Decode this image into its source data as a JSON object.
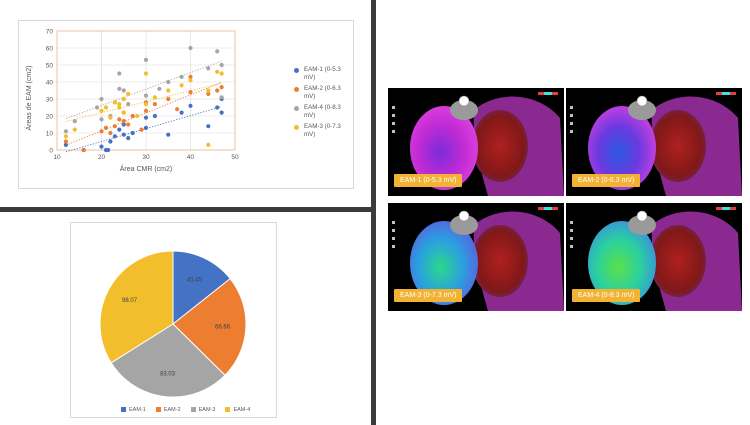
{
  "colors": {
    "eam1": "#4472c4",
    "eam2": "#ed7d31",
    "eam4": "#a5a5a5",
    "eam3": "#f2be2b",
    "label_bg": "#f2b233"
  },
  "scatter": {
    "legend": [
      {
        "name": "EAM-1 (0-5.3\nmV)",
        "color": "#4472c4"
      },
      {
        "name": "EAM-2 (0-6.3\nmV)",
        "color": "#ed7d31"
      },
      {
        "name": "EAM-4 (0-8.3\nmV)",
        "color": "#a5a5a5"
      },
      {
        "name": "EAM-3 (0-7.3\nmV)",
        "color": "#f2be2b"
      }
    ]
  },
  "pie": {
    "legend": [
      "EAM-1",
      "EAM-2",
      "EAM-3",
      "EAM-4"
    ]
  },
  "maps": {
    "labels": [
      "EAM-1 (0-5.3 mV)",
      "EAM-2 (0-6.3 mV)",
      "EAM-3 (0-7.3 mV)",
      "EAM-4 (0-8.3 mV)"
    ]
  },
  "chart_data": [
    {
      "type": "scatter",
      "xlabel": "Área CMR (cm2)",
      "ylabel": "Áreas de EAM (cm2)",
      "xlim": [
        10,
        50
      ],
      "ylim": [
        0,
        70
      ],
      "xticks": [
        10,
        20,
        30,
        40,
        50
      ],
      "yticks": [
        0,
        10,
        20,
        30,
        40,
        50,
        60,
        70
      ],
      "grid": true,
      "legend_position": "right",
      "trendlines": true,
      "series": [
        {
          "name": "EAM-1 (0-5.3 mV)",
          "color": "#4472c4",
          "points": [
            [
              12,
              3
            ],
            [
              16,
              0
            ],
            [
              20,
              2
            ],
            [
              21,
              0
            ],
            [
              21.5,
              0
            ],
            [
              22,
              5
            ],
            [
              23,
              8
            ],
            [
              24,
              12
            ],
            [
              25,
              9
            ],
            [
              25,
              15
            ],
            [
              26,
              7
            ],
            [
              27,
              10
            ],
            [
              30,
              13
            ],
            [
              30,
              19
            ],
            [
              32,
              20
            ],
            [
              35,
              9
            ],
            [
              38,
              22
            ],
            [
              40,
              26
            ],
            [
              44,
              14
            ],
            [
              46,
              25
            ],
            [
              47,
              30
            ],
            [
              47,
              22
            ]
          ]
        },
        {
          "name": "EAM-2 (0-6.3 mV)",
          "color": "#ed7d31",
          "points": [
            [
              12,
              5
            ],
            [
              16,
              0
            ],
            [
              20,
              11
            ],
            [
              21,
              13
            ],
            [
              22,
              10
            ],
            [
              23,
              14
            ],
            [
              24,
              18
            ],
            [
              25,
              17
            ],
            [
              25,
              22
            ],
            [
              26,
              15
            ],
            [
              27,
              20
            ],
            [
              29,
              12
            ],
            [
              30,
              23
            ],
            [
              30,
              28
            ],
            [
              32,
              27
            ],
            [
              35,
              30
            ],
            [
              37,
              24
            ],
            [
              40,
              34
            ],
            [
              40,
              43
            ],
            [
              44,
              33
            ],
            [
              46,
              35
            ],
            [
              47,
              37
            ]
          ]
        },
        {
          "name": "EAM-4 (0-8.3 mV)",
          "color": "#a5a5a5",
          "points": [
            [
              12,
              11
            ],
            [
              14,
              17
            ],
            [
              19,
              25
            ],
            [
              20,
              30
            ],
            [
              22,
              20
            ],
            [
              23,
              28
            ],
            [
              24,
              36
            ],
            [
              24,
              45
            ],
            [
              25,
              35
            ],
            [
              25,
              30
            ],
            [
              26,
              27
            ],
            [
              30,
              32
            ],
            [
              30,
              53
            ],
            [
              33,
              36
            ],
            [
              35,
              40
            ],
            [
              38,
              43
            ],
            [
              40,
              60
            ],
            [
              44,
              48
            ],
            [
              46,
              58
            ],
            [
              47,
              50
            ],
            [
              47,
              31
            ],
            [
              20,
              18
            ]
          ]
        },
        {
          "name": "EAM-3 (0-7.3 mV)",
          "color": "#f2be2b",
          "points": [
            [
              12,
              8
            ],
            [
              14,
              12
            ],
            [
              20,
              23
            ],
            [
              21,
              25
            ],
            [
              22,
              19
            ],
            [
              23,
              28
            ],
            [
              24,
              25
            ],
            [
              25,
              30
            ],
            [
              25,
              22
            ],
            [
              26,
              33
            ],
            [
              28,
              20
            ],
            [
              30,
              27
            ],
            [
              30,
              45
            ],
            [
              32,
              31
            ],
            [
              35,
              35
            ],
            [
              38,
              38
            ],
            [
              40,
              41
            ],
            [
              44,
              35
            ],
            [
              46,
              46
            ],
            [
              47,
              45
            ],
            [
              44,
              3
            ],
            [
              24,
              27
            ]
          ]
        }
      ]
    },
    {
      "type": "pie",
      "categories": [
        "EAM-1",
        "EAM-2",
        "EAM-3",
        "EAM-4"
      ],
      "values": [
        41.45,
        66.66,
        83.03,
        98.07
      ],
      "colors": [
        "#4472c4",
        "#ed7d31",
        "#a5a5a5",
        "#f2be2b"
      ],
      "data_labels": [
        "41.45",
        "66.66",
        "83.03",
        "98.07"
      ],
      "legend_position": "bottom"
    }
  ]
}
